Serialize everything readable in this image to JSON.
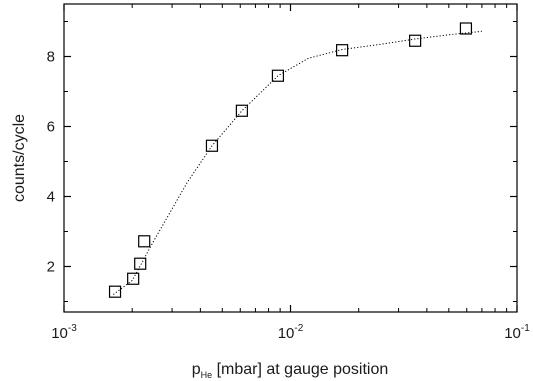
{
  "chart_data": {
    "type": "scatter",
    "title": "",
    "xlabel": {
      "base": "p",
      "subscript": "He",
      "rest": " [mbar] at gauge position"
    },
    "ylabel": "counts/cycle",
    "x_scale": "log",
    "xlim": [
      0.001,
      0.1
    ],
    "ylim": [
      0.7,
      9.5
    ],
    "x_ticks": [
      {
        "value": 0.001,
        "base": "10",
        "exponent": "-3"
      },
      {
        "value": 0.01,
        "base": "10",
        "exponent": "-2"
      },
      {
        "value": 0.1,
        "base": "10",
        "exponent": "-1"
      }
    ],
    "y_ticks": [
      2,
      4,
      6,
      8
    ],
    "marker": "open-square",
    "points": [
      {
        "x": 0.00168,
        "y": 1.28
      },
      {
        "x": 0.00202,
        "y": 1.65
      },
      {
        "x": 0.00217,
        "y": 2.08
      },
      {
        "x": 0.00226,
        "y": 2.72
      },
      {
        "x": 0.0045,
        "y": 5.45
      },
      {
        "x": 0.0061,
        "y": 6.45
      },
      {
        "x": 0.0088,
        "y": 7.45
      },
      {
        "x": 0.0169,
        "y": 8.18
      },
      {
        "x": 0.0355,
        "y": 8.45
      },
      {
        "x": 0.0595,
        "y": 8.8
      }
    ],
    "fit_curve": {
      "style": "dotted",
      "points": [
        {
          "x": 0.00165,
          "y": 1.2
        },
        {
          "x": 0.002,
          "y": 1.6
        },
        {
          "x": 0.0025,
          "y": 2.75
        },
        {
          "x": 0.0035,
          "y": 4.4
        },
        {
          "x": 0.0045,
          "y": 5.45
        },
        {
          "x": 0.0061,
          "y": 6.45
        },
        {
          "x": 0.0088,
          "y": 7.45
        },
        {
          "x": 0.012,
          "y": 7.95
        },
        {
          "x": 0.0169,
          "y": 8.2
        },
        {
          "x": 0.025,
          "y": 8.35
        },
        {
          "x": 0.0355,
          "y": 8.5
        },
        {
          "x": 0.05,
          "y": 8.62
        },
        {
          "x": 0.07,
          "y": 8.72
        }
      ]
    }
  }
}
